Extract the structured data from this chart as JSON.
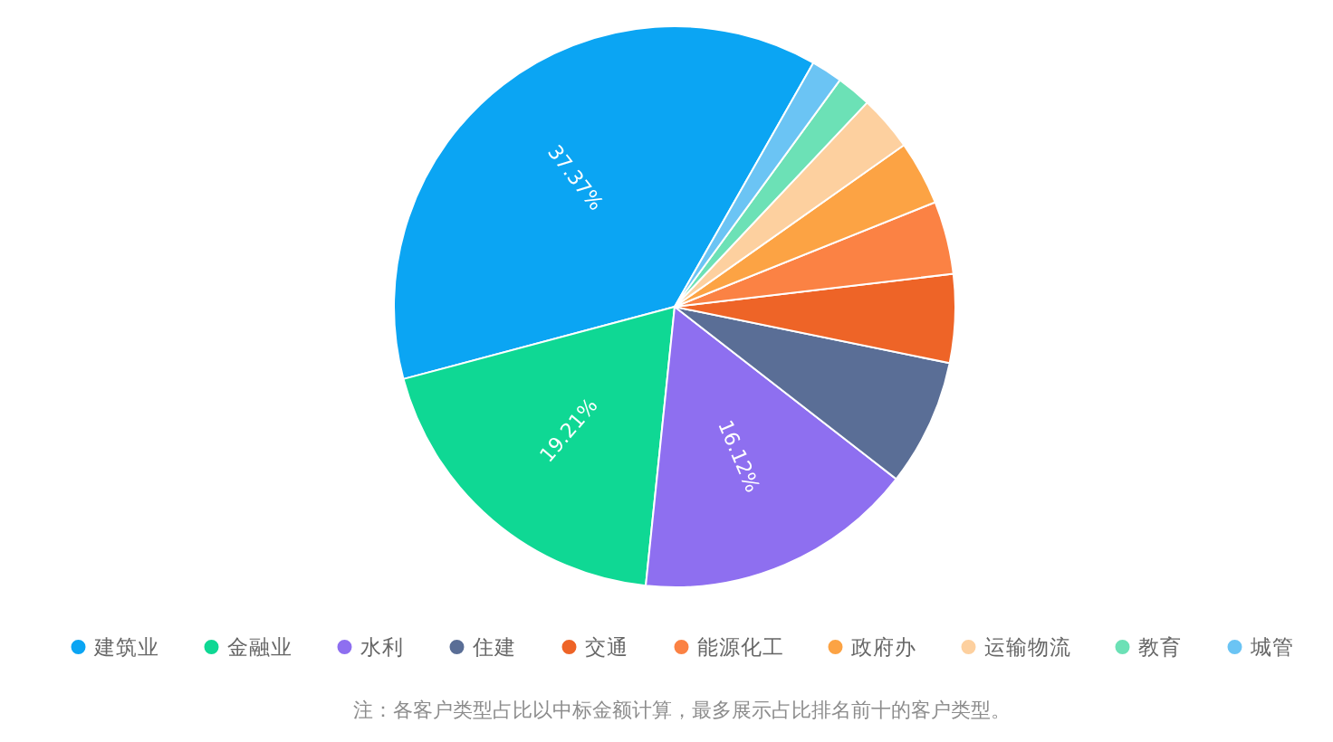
{
  "chart_data": {
    "type": "pie",
    "categories": [
      "建筑业",
      "金融业",
      "水利",
      "住建",
      "交通",
      "能源化工",
      "政府办",
      "运输物流",
      "教育",
      "城管"
    ],
    "values": [
      37.37,
      19.21,
      16.12,
      7.3,
      5.1,
      4.2,
      3.7,
      3.2,
      2.0,
      1.8
    ],
    "colors": [
      "#0ba5f3",
      "#0fd894",
      "#8e6ff0",
      "#5a6e96",
      "#ee6427",
      "#fb8244",
      "#fca344",
      "#fdd09f",
      "#6ce1b6",
      "#6bc4f4"
    ],
    "value_labels": [
      "37.37%",
      "19.21%",
      "16.12%",
      null,
      null,
      null,
      null,
      null,
      null,
      null
    ],
    "legend": "bottom",
    "annotations": [
      "注：各客户类型占比以中标金额计算，最多展示占比排名前十的客户类型。"
    ]
  }
}
